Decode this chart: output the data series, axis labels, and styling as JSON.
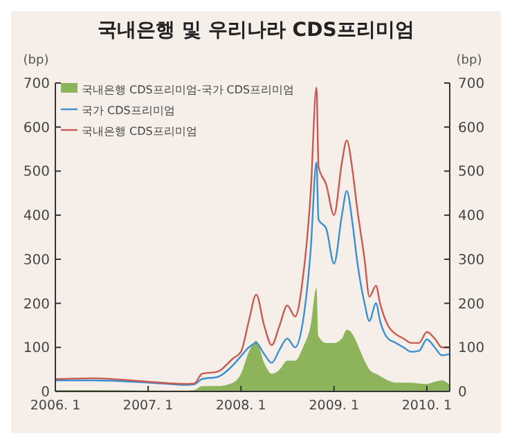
{
  "chart_data": {
    "type": "line",
    "title": "국내은행 및 우리나라 CDS프리미엄",
    "ylabel": "(bp)",
    "y2label": "(bp)",
    "x": [
      "2006-01",
      "2006-06",
      "2007-01",
      "2007-06",
      "2007-07",
      "2007-08",
      "2007-10",
      "2007-12",
      "2008-01",
      "2008-02",
      "2008-03",
      "2008-04",
      "2008-05",
      "2008-06",
      "2008-07",
      "2008-08",
      "2008-09",
      "2008-10",
      "2008-10-24",
      "2008-11",
      "2008-12",
      "2009-01",
      "2009-02",
      "2009-02-20",
      "2009-03-15",
      "2009-04",
      "2009-05",
      "2009-05-20",
      "2009-06-15",
      "2009-07",
      "2009-08",
      "2009-09",
      "2009-10",
      "2009-11",
      "2009-12",
      "2010-01",
      "2010-02",
      "2010-03",
      "2010-04"
    ],
    "series": [
      {
        "name": "국내은행 CDS프리미엄-국가 CDS프리미엄",
        "type": "area",
        "color": "#8db45a",
        "values": [
          3,
          3,
          2,
          2,
          3,
          12,
          12,
          20,
          40,
          90,
          115,
          65,
          40,
          50,
          70,
          70,
          100,
          150,
          235,
          125,
          110,
          110,
          120,
          140,
          130,
          110,
          70,
          50,
          40,
          35,
          25,
          20,
          20,
          20,
          18,
          17,
          22,
          25,
          15
        ]
      },
      {
        "name": "국가 CDS프리미엄",
        "color": "#3a8fd0",
        "values": [
          25,
          25,
          20,
          15,
          16,
          28,
          33,
          60,
          80,
          100,
          110,
          85,
          65,
          95,
          120,
          100,
          160,
          320,
          520,
          390,
          370,
          290,
          400,
          455,
          380,
          300,
          200,
          160,
          200,
          160,
          120,
          110,
          100,
          90,
          92,
          118,
          100,
          82,
          85
        ]
      },
      {
        "name": "국내은행 CDS프리미엄",
        "color": "#c85a50",
        "values": [
          28,
          30,
          22,
          17,
          18,
          40,
          45,
          75,
          90,
          160,
          220,
          150,
          105,
          150,
          195,
          170,
          260,
          450,
          690,
          510,
          470,
          400,
          520,
          570,
          500,
          420,
          300,
          215,
          240,
          200,
          150,
          130,
          120,
          110,
          110,
          135,
          120,
          100,
          100
        ]
      }
    ],
    "xlim": [
      "2006-01",
      "2010-04"
    ],
    "xticks": [
      {
        "value": "2006-01",
        "label": "2006. 1"
      },
      {
        "value": "2007-01",
        "label": "2007. 1"
      },
      {
        "value": "2008-01",
        "label": "2008. 1"
      },
      {
        "value": "2009-01",
        "label": "2009. 1"
      },
      {
        "value": "2010-01",
        "label": "2010. 1"
      }
    ],
    "ylim": [
      0,
      700
    ],
    "yticks": [
      0,
      100,
      200,
      300,
      400,
      500,
      600,
      700
    ],
    "y2lim": [
      0,
      700
    ],
    "y2ticks": [
      0,
      100,
      200,
      300,
      400,
      500,
      600,
      700
    ],
    "legend": "top left",
    "grid": false
  }
}
